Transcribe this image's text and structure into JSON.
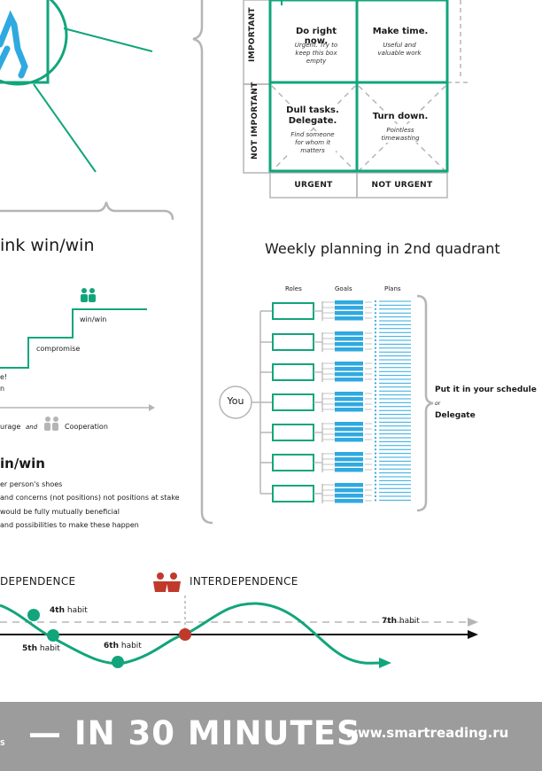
{
  "matrix": {
    "row_labels": [
      "IMPORTANT",
      "NOT IMPORTANT"
    ],
    "col_labels": [
      "URGENT",
      "NOT URGENT"
    ],
    "quadrants": [
      {
        "title": "Do right now.",
        "sub": "Urgent. Try to keep this box empty"
      },
      {
        "title": "Make time.",
        "sub": "Useful and valuable work"
      },
      {
        "title": "Dull tasks. Delegate.",
        "sub": "Find someone for whom it matters"
      },
      {
        "title": "Turn down.",
        "sub": "Pointless timewasting"
      }
    ]
  },
  "winwin": {
    "title": "ink win/win",
    "steps": [
      "win/win",
      "compromise"
    ],
    "partial": [
      "e!",
      "n"
    ],
    "bottom_left": "urage",
    "and": "and",
    "cooperation": "Cooperation",
    "subtitle": "in/win",
    "bullets": [
      "er person's shoes",
      "and concerns (not positions) not positions at stake",
      "would be fully mutually beneficial",
      "and possibilities to make these happen"
    ]
  },
  "weekly": {
    "title": "Weekly planning in 2nd quadrant",
    "col_labels": [
      "Roles",
      "Goals",
      "Plans"
    ],
    "you": "You",
    "action1": "Put it in your schedule",
    "or": "or",
    "action2": "Delegate"
  },
  "timeline": {
    "left_label": "DEPENDENCE",
    "right_label": "INTERDEPENDENCE",
    "habits": [
      {
        "num": "4th",
        "word": "habit"
      },
      {
        "num": "5th",
        "word": "habit"
      },
      {
        "num": "6th",
        "word": "habit"
      },
      {
        "num": "7th",
        "word": "habit"
      }
    ]
  },
  "footer": {
    "left_text": "S",
    "headline": "— IN 30 MINUTES",
    "url": "www.smartreading.ru"
  },
  "colors": {
    "green": "#12a57c",
    "blue": "#2fa9e0",
    "red": "#c0392b",
    "gray": "#b5b5b5",
    "footer": "#9c9c9c"
  }
}
